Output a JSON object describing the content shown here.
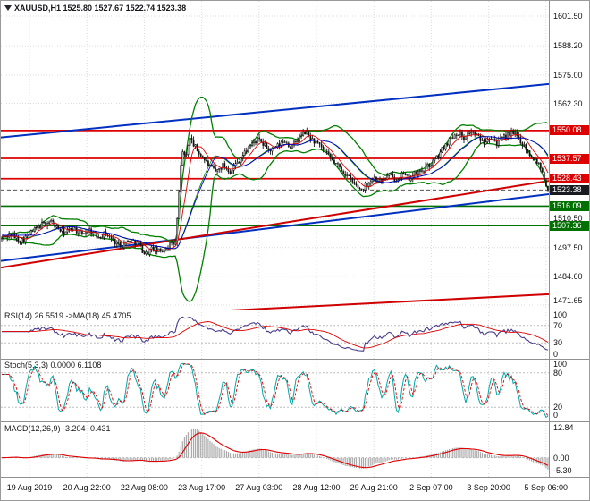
{
  "window": {
    "title": "XAUUSD,H1 1525.80 1527.67 1522.74 1523.38"
  },
  "panels": {
    "rsi": {
      "label": "RSI(14) 26.5519 ->MA(18) 45.4705",
      "ticks": [
        {
          "label": "100",
          "value": 100
        },
        {
          "label": "70",
          "value": 70
        },
        {
          "label": "30",
          "value": 30
        },
        {
          "label": "0",
          "value": 0
        }
      ],
      "levels": [
        70,
        30
      ],
      "range": [
        0,
        100
      ]
    },
    "stoch": {
      "label": "Stoch(5,3,3) 0.0000 6.1108",
      "ticks": [
        {
          "label": "100",
          "value": 100
        },
        {
          "label": "80",
          "value": 80
        },
        {
          "label": "20",
          "value": 20
        },
        {
          "label": "0",
          "value": 0
        }
      ],
      "levels": [
        80,
        20
      ],
      "range": [
        0,
        100
      ]
    },
    "macd": {
      "label": "MACD(12,26,9) -3.204 -0.431",
      "ticks": [
        {
          "label": "12.84",
          "value": 12.84
        },
        {
          "label": "0.00",
          "value": 0
        },
        {
          "label": "-5.30",
          "value": -5.3
        }
      ],
      "levels": [
        0
      ],
      "range": [
        -7,
        14
      ]
    }
  },
  "chart_data": {
    "type": "candlestick",
    "symbol": "XAUUSD",
    "timeframe": "H1",
    "title": "XAUUSD,H1 1525.80 1527.67 1522.74 1523.38",
    "ohlc": {
      "open": 1525.8,
      "high": 1527.67,
      "low": 1522.74,
      "close": 1523.38
    },
    "xticks": [
      "19 Aug 2019",
      "20 Aug 22:00",
      "22 Aug 08:00",
      "23 Aug 17:00",
      "27 Aug 03:00",
      "28 Aug 12:00",
      "29 Aug 21:00",
      "2 Sep 07:00",
      "3 Sep 20:00",
      "5 Sep 06:00"
    ],
    "main": {
      "ylim": [
        1471.65,
        1601.5
      ],
      "yticks": [
        {
          "label": "1601.50",
          "price": 1601.5
        },
        {
          "label": "1588.20",
          "price": 1588.2
        },
        {
          "label": "1575.00",
          "price": 1575.0
        },
        {
          "label": "1562.30",
          "price": 1562.3
        },
        {
          "label": "1510.50",
          "price": 1510.5
        },
        {
          "label": "1497.50",
          "price": 1497.5
        },
        {
          "label": "1484.60",
          "price": 1484.6
        },
        {
          "label": "1471.65",
          "price": 1471.65
        }
      ],
      "badges": [
        {
          "label": "1550.08",
          "price": 1550.08,
          "bg": "#dd0000",
          "type": "resistance"
        },
        {
          "label": "1537.57",
          "price": 1537.57,
          "bg": "#dd0000",
          "type": "resistance"
        },
        {
          "label": "1528.43",
          "price": 1528.43,
          "bg": "#dd0000",
          "type": "resistance"
        },
        {
          "label": "1523.38",
          "price": 1523.38,
          "bg": "#181b20",
          "type": "current-price"
        },
        {
          "label": "1516.09",
          "price": 1516.09,
          "bg": "#007000",
          "type": "support"
        },
        {
          "label": "1507.36",
          "price": 1507.36,
          "bg": "#007000",
          "type": "support"
        }
      ],
      "hlines": [
        {
          "price": 1550.08,
          "color": "#dd0000"
        },
        {
          "price": 1537.57,
          "color": "#dd0000"
        },
        {
          "price": 1528.43,
          "color": "#dd0000"
        },
        {
          "price": 1516.09,
          "color": "#007000"
        },
        {
          "price": 1507.36,
          "color": "#007000"
        }
      ],
      "current_price": 1523.38,
      "trendlines": [
        {
          "color": "#0030c0",
          "width": 2,
          "p": [
            [
              0,
              1547.0
            ],
            [
              1,
              1571.0
            ]
          ]
        },
        {
          "color": "#0030c0",
          "width": 2,
          "p": [
            [
              0,
              1491.5
            ],
            [
              1,
              1521.5
            ]
          ]
        },
        {
          "color": "#d00000",
          "width": 2,
          "p": [
            [
              0,
              1488.5
            ],
            [
              1,
              1527.5
            ]
          ]
        },
        {
          "color": "#d00000",
          "width": 2,
          "p": [
            [
              0,
              1464.0
            ],
            [
              1,
              1476.5
            ]
          ]
        }
      ],
      "price_path": [
        [
          0.0,
          1501.5
        ],
        [
          0.015,
          1503.5
        ],
        [
          0.035,
          1500.5
        ],
        [
          0.055,
          1504.5
        ],
        [
          0.075,
          1508.0
        ],
        [
          0.09,
          1509.5
        ],
        [
          0.1,
          1506.5
        ],
        [
          0.115,
          1504.0
        ],
        [
          0.13,
          1506.5
        ],
        [
          0.145,
          1503.5
        ],
        [
          0.16,
          1505.5
        ],
        [
          0.175,
          1502.5
        ],
        [
          0.19,
          1504.0
        ],
        [
          0.205,
          1500.5
        ],
        [
          0.22,
          1498.5
        ],
        [
          0.235,
          1501.0
        ],
        [
          0.25,
          1499.5
        ],
        [
          0.262,
          1494.5
        ],
        [
          0.275,
          1497.0
        ],
        [
          0.29,
          1495.5
        ],
        [
          0.305,
          1498.5
        ],
        [
          0.318,
          1499.5
        ],
        [
          0.324,
          1520.0
        ],
        [
          0.33,
          1542.5
        ],
        [
          0.336,
          1536.5
        ],
        [
          0.343,
          1547.0
        ],
        [
          0.35,
          1544.5
        ],
        [
          0.358,
          1541.0
        ],
        [
          0.368,
          1538.0
        ],
        [
          0.38,
          1534.0
        ],
        [
          0.392,
          1531.5
        ],
        [
          0.405,
          1534.5
        ],
        [
          0.418,
          1532.0
        ],
        [
          0.43,
          1535.5
        ],
        [
          0.443,
          1539.5
        ],
        [
          0.455,
          1543.5
        ],
        [
          0.468,
          1546.0
        ],
        [
          0.48,
          1543.5
        ],
        [
          0.492,
          1541.0
        ],
        [
          0.505,
          1543.0
        ],
        [
          0.518,
          1545.5
        ],
        [
          0.53,
          1542.5
        ],
        [
          0.543,
          1546.5
        ],
        [
          0.556,
          1549.5
        ],
        [
          0.568,
          1546.0
        ],
        [
          0.58,
          1543.5
        ],
        [
          0.593,
          1540.0
        ],
        [
          0.606,
          1536.5
        ],
        [
          0.62,
          1533.0
        ],
        [
          0.633,
          1529.5
        ],
        [
          0.645,
          1526.0
        ],
        [
          0.658,
          1523.5
        ],
        [
          0.67,
          1526.5
        ],
        [
          0.682,
          1529.0
        ],
        [
          0.695,
          1527.0
        ],
        [
          0.708,
          1530.0
        ],
        [
          0.72,
          1528.0
        ],
        [
          0.732,
          1530.5
        ],
        [
          0.745,
          1528.5
        ],
        [
          0.757,
          1530.5
        ],
        [
          0.77,
          1532.0
        ],
        [
          0.783,
          1534.5
        ],
        [
          0.797,
          1538.0
        ],
        [
          0.81,
          1543.0
        ],
        [
          0.823,
          1547.0
        ],
        [
          0.835,
          1549.5
        ],
        [
          0.847,
          1546.5
        ],
        [
          0.858,
          1550.0
        ],
        [
          0.87,
          1547.5
        ],
        [
          0.882,
          1545.0
        ],
        [
          0.895,
          1548.0
        ],
        [
          0.907,
          1544.5
        ],
        [
          0.92,
          1547.0
        ],
        [
          0.932,
          1549.0
        ],
        [
          0.944,
          1547.5
        ],
        [
          0.955,
          1544.0
        ],
        [
          0.965,
          1540.0
        ],
        [
          0.975,
          1537.5
        ],
        [
          0.985,
          1535.0
        ],
        [
          0.992,
          1530.0
        ],
        [
          1.0,
          1523.38
        ]
      ]
    },
    "indicators": {
      "bollinger": {
        "period": 20,
        "deviation": 2
      },
      "ma_fast": 8,
      "ma_slow": 21,
      "rsi": {
        "period": 14,
        "ma": 18,
        "last": 26.5519,
        "ma_last": 45.4705
      },
      "stoch": {
        "k": 5,
        "d": 3,
        "slowing": 3,
        "last_k": 0.0,
        "last_d": 6.1108
      },
      "macd": {
        "fast": 12,
        "slow": 26,
        "signal": 9,
        "last": -3.204,
        "last_signal": -0.431
      }
    },
    "colors": {
      "candle": "#121212",
      "bands": "#008000",
      "ma_fast": "#e00000",
      "ma_slow": "#0000d0",
      "resistance": "#dd0000",
      "support": "#007000",
      "channel": "#0030c0",
      "rsi_line": "#483d8b",
      "rsi_ma": "#e00000",
      "stoch_k": "#00a8a8",
      "stoch_d": "#e00000",
      "macd_hist": "#ababab",
      "macd_signal": "#e00000",
      "grid": "#dcdcdc",
      "separator": "#909090"
    }
  }
}
